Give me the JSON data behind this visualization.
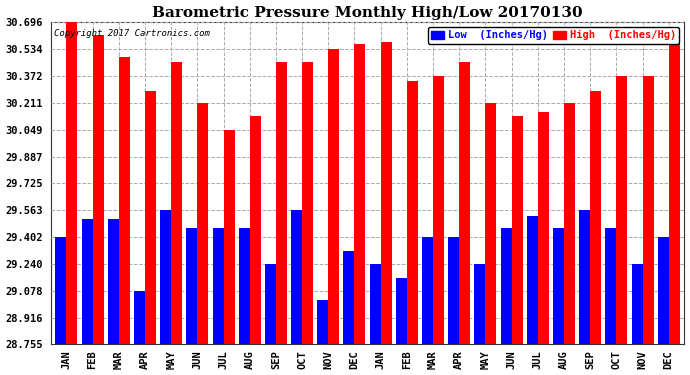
{
  "title": "Barometric Pressure Monthly High/Low 20170130",
  "copyright": "Copyright 2017 Cartronics.com",
  "legend_low": "Low  (Inches/Hg)",
  "legend_high": "High  (Inches/Hg)",
  "months": [
    "JAN",
    "FEB",
    "MAR",
    "APR",
    "MAY",
    "JUN",
    "JUL",
    "AUG",
    "SEP",
    "OCT",
    "NOV",
    "DEC",
    "JAN",
    "FEB",
    "MAR",
    "APR",
    "MAY",
    "JUN",
    "JUL",
    "AUG",
    "SEP",
    "OCT",
    "NOV",
    "DEC"
  ],
  "high_values": [
    30.696,
    30.618,
    30.487,
    30.28,
    30.455,
    30.211,
    30.049,
    30.13,
    30.455,
    30.455,
    30.534,
    30.568,
    30.575,
    30.34,
    30.372,
    30.455,
    30.211,
    30.13,
    30.158,
    30.211,
    30.28,
    30.372,
    30.372,
    30.64
  ],
  "low_values": [
    29.402,
    29.51,
    29.51,
    29.078,
    29.563,
    29.456,
    29.456,
    29.456,
    29.24,
    29.563,
    29.025,
    29.319,
    29.24,
    29.157,
    29.402,
    29.402,
    29.24,
    29.456,
    29.53,
    29.456,
    29.563,
    29.456,
    29.24,
    29.402
  ],
  "bar_color_high": "#ff0000",
  "bar_color_low": "#0000ff",
  "background_color": "#ffffff",
  "grid_color": "#aaaaaa",
  "yticks": [
    28.755,
    28.916,
    29.078,
    29.24,
    29.402,
    29.563,
    29.725,
    29.887,
    30.049,
    30.211,
    30.372,
    30.534,
    30.696
  ],
  "ylim_min": 28.755,
  "ylim_max": 30.696,
  "title_fontsize": 11,
  "tick_fontsize": 7.5,
  "legend_fontsize": 7.5,
  "copyright_fontsize": 6.5
}
